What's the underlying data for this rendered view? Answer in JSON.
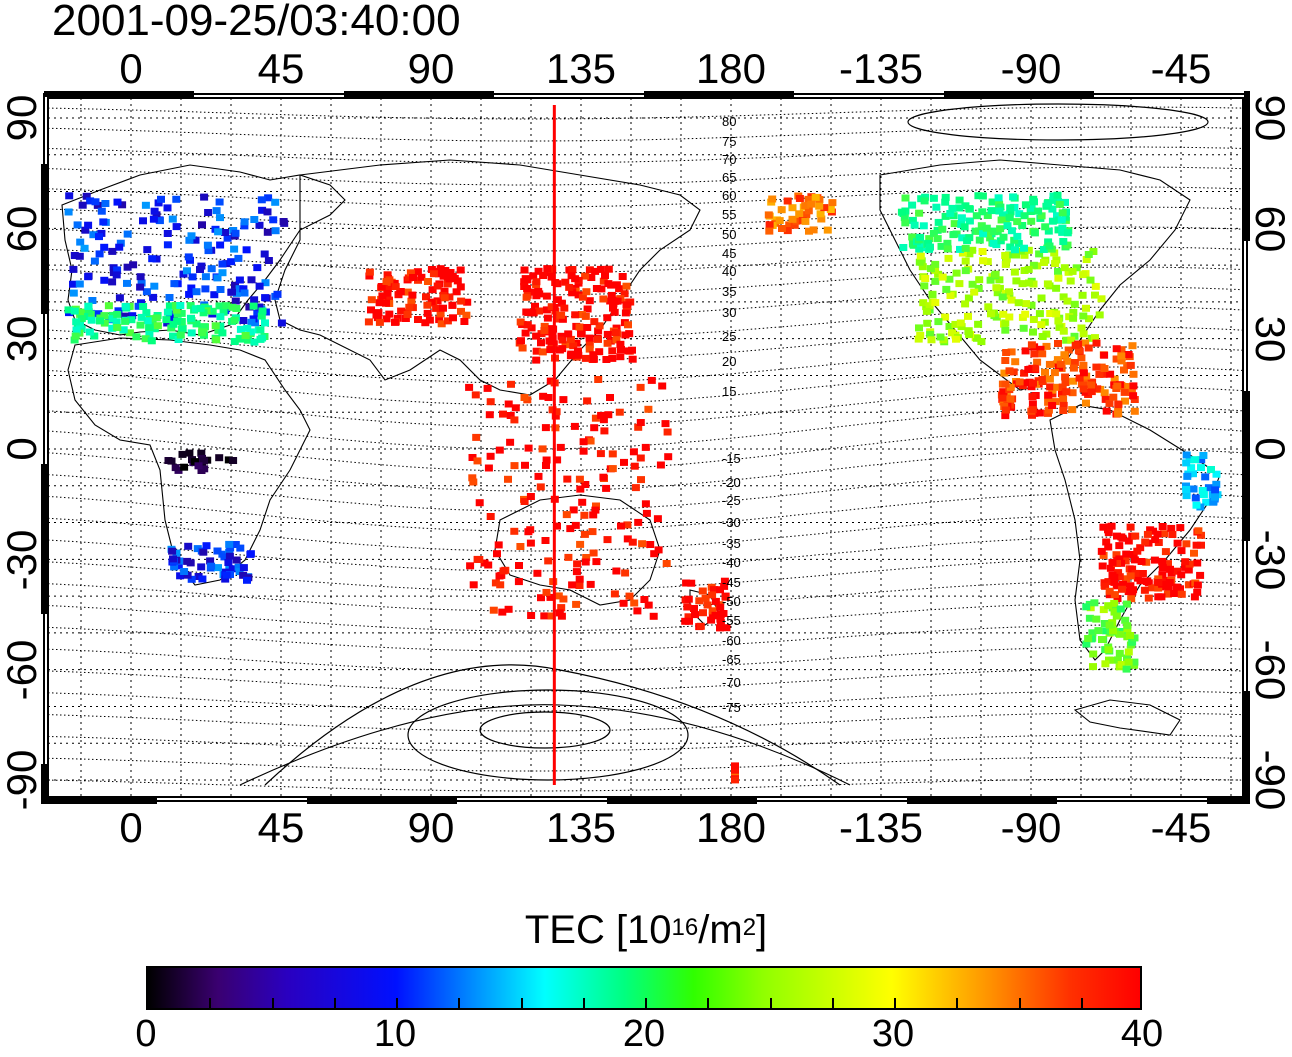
{
  "figure": {
    "timestamp": "2001-09-25/03:40:00",
    "top_lon_labels": [
      "0",
      "45",
      "90",
      "135",
      "180",
      "-135",
      "-90",
      "-45"
    ],
    "bottom_lon_labels": [
      "0",
      "45",
      "90",
      "135",
      "180",
      "-135",
      "-90",
      "-45"
    ],
    "left_lat_labels": [
      "90",
      "60",
      "30",
      "0",
      "-30",
      "-60",
      "-90"
    ],
    "right_lat_labels": [
      "90",
      "60",
      "30",
      "0",
      "-30",
      "-60",
      "-90"
    ],
    "mlat_labels": [
      "80",
      "75",
      "70",
      "65",
      "60",
      "55",
      "50",
      "45",
      "40",
      "35",
      "30",
      "25",
      "20",
      "15",
      "-15",
      "-20",
      "-25",
      "-30",
      "-35",
      "-40",
      "-45",
      "-50",
      "-55",
      "-60",
      "-65",
      "-70",
      "-75"
    ],
    "colorbar": {
      "title_main": "TEC  [10",
      "title_exp1": "16",
      "title_mid": "/m",
      "title_exp2": "2",
      "title_end": "]",
      "tick_labels": [
        "0",
        "10",
        "20",
        "30",
        "40"
      ],
      "range": [
        0,
        40
      ],
      "colormap": [
        "#000000",
        "#3a0070",
        "#0010ff",
        "#00ffff",
        "#00ff80",
        "#90ff00",
        "#ffff00",
        "#ff9000",
        "#ff0000"
      ]
    }
  },
  "chart_data": {
    "type": "heatmap",
    "title": "2001-09-25/03:40:00",
    "x_axis": {
      "ticks_lon": [
        0,
        45,
        90,
        135,
        180,
        -135,
        -90,
        -45
      ]
    },
    "y_axis": {
      "ticks_lat": [
        90,
        60,
        30,
        0,
        -30,
        -60,
        -90
      ],
      "range": [
        -90,
        90
      ]
    },
    "value_label": "TEC  [10^16/m^2]",
    "value_range": [
      0,
      40
    ],
    "marker_longitude": 127,
    "regions": [
      {
        "lon_range": [
          -20,
          45
        ],
        "lat_range": [
          35,
          70
        ],
        "tec": 10
      },
      {
        "lon_range": [
          -20,
          40
        ],
        "lat_range": [
          30,
          40
        ],
        "tec": 20
      },
      {
        "lon_range": [
          10,
          35
        ],
        "lat_range": [
          -35,
          -25
        ],
        "tec": 10
      },
      {
        "lon_range": [
          10,
          30
        ],
        "lat_range": [
          -5,
          0
        ],
        "tec": 2
      },
      {
        "lon_range": [
          70,
          100
        ],
        "lat_range": [
          35,
          50
        ],
        "tec": 40
      },
      {
        "lon_range": [
          115,
          150
        ],
        "lat_range": [
          25,
          50
        ],
        "tec": 40
      },
      {
        "lon_range": [
          100,
          160
        ],
        "lat_range": [
          -45,
          20
        ],
        "tec": 40
      },
      {
        "lon_range": [
          165,
          178
        ],
        "lat_range": [
          -48,
          -35
        ],
        "tec": 40
      },
      {
        "lon_range": [
          -170,
          -150
        ],
        "lat_range": [
          60,
          70
        ],
        "tec": 36
      },
      {
        "lon_range": [
          -125,
          -70
        ],
        "lat_range": [
          30,
          55
        ],
        "tec": 26
      },
      {
        "lon_range": [
          -130,
          -80
        ],
        "lat_range": [
          55,
          70
        ],
        "tec": 20
      },
      {
        "lon_range": [
          -100,
          -60
        ],
        "lat_range": [
          10,
          30
        ],
        "tec": 38
      },
      {
        "lon_range": [
          -70,
          -40
        ],
        "lat_range": [
          -40,
          -20
        ],
        "tec": 40
      },
      {
        "lon_range": [
          -75,
          -60
        ],
        "lat_range": [
          -60,
          -40
        ],
        "tec": 24
      },
      {
        "lon_range": [
          -45,
          -35
        ],
        "lat_range": [
          -15,
          0
        ],
        "tec": 14
      },
      {
        "lon_range": [
          -180,
          180
        ],
        "lat_range": [
          -90,
          -85
        ],
        "tec": 38
      }
    ]
  }
}
